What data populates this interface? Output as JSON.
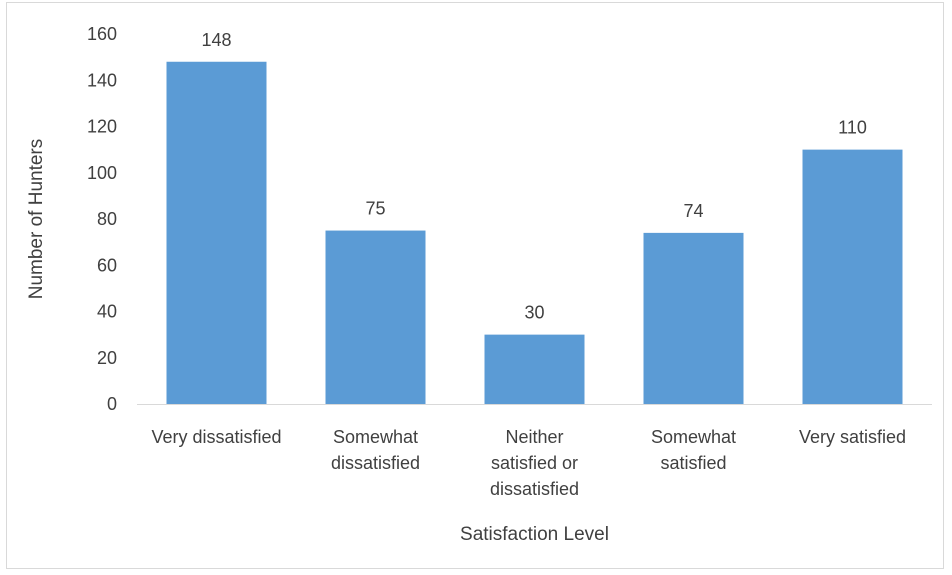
{
  "chart_data": {
    "type": "bar",
    "categories": [
      [
        "Very dissatisfied"
      ],
      [
        "Somewhat",
        "dissatisfied"
      ],
      [
        "Neither",
        "satisfied or",
        "dissatisfied"
      ],
      [
        "Somewhat",
        "satisfied"
      ],
      [
        "Very satisfied"
      ]
    ],
    "values": [
      148,
      75,
      30,
      74,
      110
    ],
    "xlabel": "Satisfaction Level",
    "ylabel": "Number of Hunters",
    "ylim": [
      0,
      160
    ],
    "yticks": [
      0,
      20,
      40,
      60,
      80,
      100,
      120,
      140,
      160
    ],
    "grid": false,
    "legend": "none",
    "bar_color": "#5b9bd5",
    "axis_color": "#d9d9d9",
    "text_color": "#404040"
  }
}
